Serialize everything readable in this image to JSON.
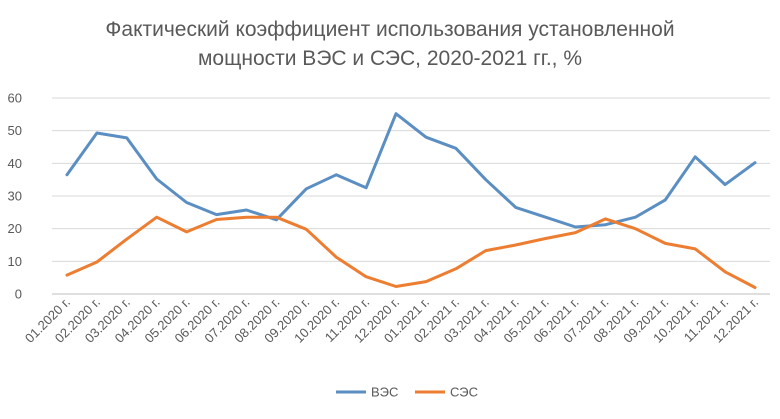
{
  "chart_data": {
    "type": "line",
    "title_lines": [
      "Фактический коэффициент использования установленной",
      "мощности ВЭС и СЭС, 2020-2021 гг., %"
    ],
    "categories": [
      "01.2020 г.",
      "02.2020 г.",
      "03.2020 г.",
      "04.2020 г.",
      "05.2020 г.",
      "06.2020 г.",
      "07.2020 г.",
      "08.2020 г.",
      "09.2020 г.",
      "10.2020 г.",
      "11.2020 г.",
      "12.2020 г.",
      "01.2021 г.",
      "02.2021 г.",
      "03.2021 г.",
      "04.2021 г.",
      "05.2021 г.",
      "06.2021 г.",
      "07.2021 г.",
      "08.2021 г.",
      "09.2021 г.",
      "10.2021 г.",
      "11.2021 г.",
      "12.2021 г."
    ],
    "series": [
      {
        "name": "ВЭС",
        "color": "#5B8EC2",
        "values": [
          36.5,
          49.3,
          47.8,
          35.2,
          28.0,
          24.3,
          25.7,
          22.7,
          32.2,
          36.5,
          32.5,
          55.2,
          48.0,
          44.6,
          35.0,
          26.5,
          23.5,
          20.5,
          21.2,
          23.5,
          28.8,
          42.0,
          33.5,
          40.2
        ]
      },
      {
        "name": "СЭС",
        "color": "#ED7D31",
        "values": [
          5.8,
          9.8,
          16.8,
          23.5,
          19.0,
          22.8,
          23.5,
          23.5,
          19.8,
          11.3,
          5.3,
          2.3,
          3.8,
          7.7,
          13.3,
          15.0,
          17.0,
          18.8,
          23.0,
          20.0,
          15.5,
          13.8,
          6.8,
          2.0
        ]
      }
    ],
    "y_ticks": [
      "0",
      "10",
      "20",
      "30",
      "40",
      "50",
      "60"
    ],
    "ylim": [
      0,
      60
    ],
    "grid": true,
    "legend_position": "bottom"
  }
}
